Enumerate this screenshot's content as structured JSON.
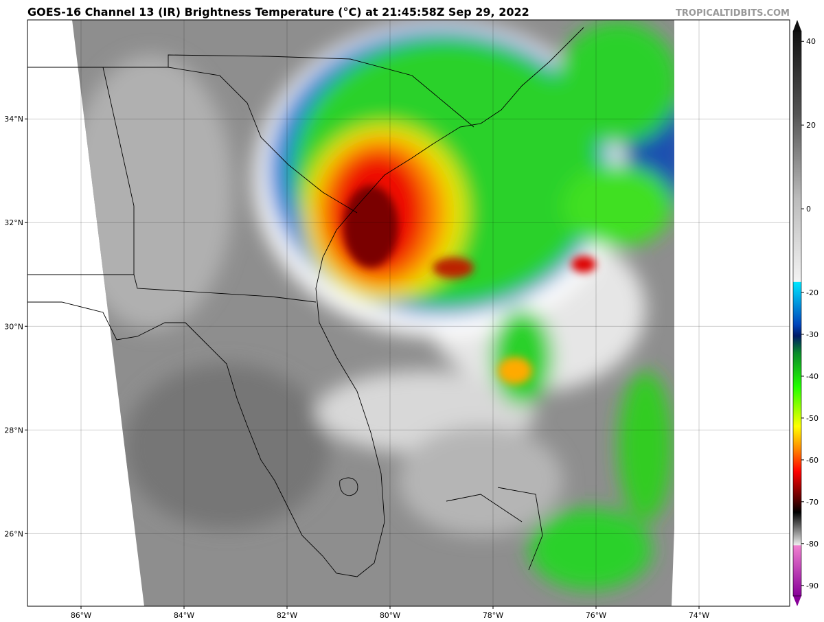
{
  "title": "GOES-16 Channel 13 (IR) Brightness Temperature (°C) at 21:45:58Z Sep 29, 2022",
  "watermark": "TROPICALTIDBITS.COM",
  "map": {
    "lonlim": [
      -87.04,
      -72.24
    ],
    "latlim": [
      24.6,
      35.91
    ],
    "lon_ticks": [
      {
        "value": -86,
        "label": "86°W"
      },
      {
        "value": -84,
        "label": "84°W"
      },
      {
        "value": -82,
        "label": "82°W"
      },
      {
        "value": -80,
        "label": "80°W"
      },
      {
        "value": -78,
        "label": "78°W"
      },
      {
        "value": -76,
        "label": "76°W"
      },
      {
        "value": -74,
        "label": "74°W"
      }
    ],
    "lat_ticks": [
      {
        "value": 34,
        "label": "34°N"
      },
      {
        "value": 32,
        "label": "32°N"
      },
      {
        "value": 30,
        "label": "30°N"
      },
      {
        "value": 28,
        "label": "28°N"
      },
      {
        "value": 26,
        "label": "26°N"
      }
    ]
  },
  "colorbar": {
    "lim": [
      -92.5,
      42.5
    ],
    "ticks": [
      40,
      20,
      0,
      -20,
      -30,
      -40,
      -50,
      -60,
      -70,
      -80,
      -90
    ]
  }
}
